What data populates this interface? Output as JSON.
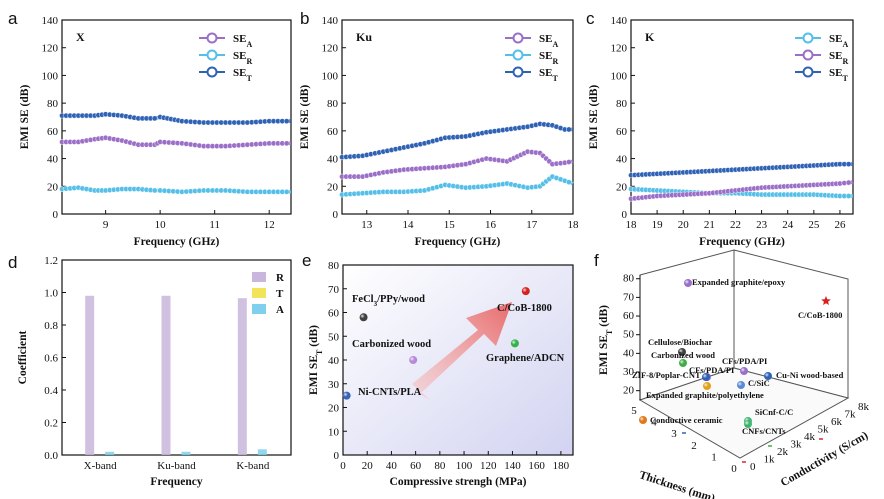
{
  "colors": {
    "se_a": "#9b6fc7",
    "se_r": "#55bfe8",
    "se_t": "#2f62b5",
    "bar_r": "#c9b6dc",
    "bar_t": "#f2e35a",
    "bar_a": "#7fd0ec",
    "highlight": "#d6201f"
  },
  "chart_data": [
    {
      "panel": "a",
      "type": "line",
      "band": "X",
      "xlabel": "Frequency (GHz)",
      "ylabel": "EMI SE (dB)",
      "xlim": [
        8.2,
        12.4
      ],
      "ylim": [
        0,
        140
      ],
      "xticks": [
        9,
        10,
        11,
        12
      ],
      "yticks": [
        0,
        20,
        40,
        60,
        80,
        100,
        120,
        140
      ],
      "x": [
        8.2,
        8.5,
        8.8,
        9.0,
        9.3,
        9.6,
        9.9,
        10.0,
        10.4,
        10.8,
        11.2,
        11.6,
        12.0,
        12.4
      ],
      "series": [
        {
          "name": "SE",
          "sub": "A",
          "color_key": "se_a",
          "values": [
            52,
            52,
            54,
            55,
            53,
            50,
            50,
            52,
            51,
            49,
            49,
            50,
            51,
            51
          ]
        },
        {
          "name": "SE",
          "sub": "R",
          "color_key": "se_r",
          "values": [
            18,
            19,
            17,
            17,
            18,
            18,
            17,
            17,
            16,
            17,
            17,
            16,
            16,
            16
          ]
        },
        {
          "name": "SE",
          "sub": "T",
          "color_key": "se_t",
          "values": [
            71,
            71,
            71,
            72,
            71,
            69,
            69,
            70,
            67,
            66,
            66,
            66,
            67,
            67
          ]
        }
      ]
    },
    {
      "panel": "b",
      "type": "line",
      "band": "Ku",
      "xlabel": "Frequency (GHz)",
      "ylabel": "EMI SE (dB)",
      "xlim": [
        12.4,
        18
      ],
      "ylim": [
        0,
        140
      ],
      "xticks": [
        13,
        14,
        15,
        16,
        17,
        18
      ],
      "yticks": [
        0,
        20,
        40,
        60,
        80,
        100,
        120,
        140
      ],
      "x": [
        12.4,
        12.9,
        13.4,
        13.9,
        14.4,
        14.9,
        15.4,
        15.9,
        16.4,
        16.9,
        17.2,
        17.5,
        17.8,
        18.0
      ],
      "series": [
        {
          "name": "SE",
          "sub": "A",
          "color_key": "se_a",
          "values": [
            27,
            27,
            30,
            32,
            33,
            34,
            36,
            40,
            38,
            45,
            44,
            36,
            37,
            38
          ]
        },
        {
          "name": "SE",
          "sub": "R",
          "color_key": "se_r",
          "values": [
            14,
            15,
            16,
            16,
            17,
            21,
            19,
            20,
            22,
            19,
            20,
            27,
            24,
            22
          ]
        },
        {
          "name": "SE",
          "sub": "T",
          "color_key": "se_t",
          "values": [
            41,
            42,
            45,
            48,
            51,
            55,
            56,
            59,
            61,
            63,
            65,
            64,
            61,
            61
          ]
        }
      ]
    },
    {
      "panel": "c",
      "type": "line",
      "band": "K",
      "xlabel": "Frequency (GHz)",
      "ylabel": "EMI SE (dB)",
      "xlim": [
        18,
        26.5
      ],
      "ylim": [
        0,
        140
      ],
      "xticks": [
        18,
        19,
        20,
        21,
        22,
        23,
        24,
        25,
        26
      ],
      "yticks": [
        0,
        20,
        40,
        60,
        80,
        100,
        120,
        140
      ],
      "x": [
        18,
        19,
        20,
        21,
        22,
        23,
        24,
        25,
        26,
        26.5
      ],
      "series": [
        {
          "name": "SE",
          "sub": "A",
          "color_key": "se_r",
          "values": [
            18,
            17,
            16,
            15,
            15,
            14,
            14,
            14,
            13,
            13
          ]
        },
        {
          "name": "SE",
          "sub": "R",
          "color_key": "se_a",
          "values": [
            11,
            13,
            14,
            15,
            17,
            19,
            20,
            21,
            22,
            23
          ]
        },
        {
          "name": "SE",
          "sub": "T",
          "color_key": "se_t",
          "values": [
            28,
            29,
            30,
            31,
            32,
            33,
            34,
            35,
            36,
            36
          ]
        }
      ]
    },
    {
      "panel": "d",
      "type": "bar",
      "xlabel": "Frequency",
      "ylabel": "Coefficient",
      "ylim": [
        0,
        1.2
      ],
      "yticks": [
        0.0,
        0.2,
        0.4,
        0.6,
        0.8,
        1.0,
        1.2
      ],
      "categories": [
        "X-band",
        "Ku-band",
        "K-band"
      ],
      "series": [
        {
          "name": "R",
          "color_key": "bar_r",
          "values": [
            0.98,
            0.98,
            0.965
          ]
        },
        {
          "name": "T",
          "color_key": "bar_t",
          "values": [
            0.0,
            0.0,
            0.0
          ]
        },
        {
          "name": "A",
          "color_key": "bar_a",
          "values": [
            0.02,
            0.02,
            0.035
          ]
        }
      ]
    },
    {
      "panel": "e",
      "type": "scatter",
      "xlabel": "Compressive strengh (MPa)",
      "ylabel": "EMI SE",
      "ylabel_sub": "T",
      "ylabel_unit": " (dB)",
      "xlim": [
        0,
        190
      ],
      "ylim": [
        0,
        80
      ],
      "xticks": [
        0,
        20,
        40,
        60,
        80,
        100,
        120,
        140,
        160,
        180
      ],
      "yticks": [
        0,
        10,
        20,
        30,
        40,
        50,
        60,
        70,
        80
      ],
      "points": [
        {
          "label": "FeCl3/PPy/wood",
          "x": 17,
          "y": 58,
          "color": "#404040"
        },
        {
          "label": "Carbonized wood",
          "x": 58,
          "y": 40,
          "color": "#b68ad8"
        },
        {
          "label": "Ni-CNTs/PLA",
          "x": 3,
          "y": 25,
          "color": "#3a62b5"
        },
        {
          "label": "Graphene/ADCN",
          "x": 142,
          "y": 47,
          "color": "#33b44a"
        },
        {
          "label": "C/CoB-1800",
          "x": 151,
          "y": 69,
          "color": "#d6201f"
        }
      ]
    },
    {
      "panel": "f",
      "type": "scatter",
      "xlabel": "Thickness (mm)",
      "ylabel": "EMI SE",
      "ylabel_sub": "T",
      "ylabel_unit": " (dB)",
      "zlabel": "Conductivity (S/cm)",
      "yticks": [
        20,
        30,
        40,
        50,
        60,
        70,
        80
      ],
      "thickness_ticks": [
        5,
        4,
        3,
        2,
        1,
        0
      ],
      "conductivity_ticks": [
        "0",
        "1k",
        "2k",
        "3k",
        "4k",
        "5k",
        "6k",
        "7k",
        "8k"
      ],
      "points": [
        {
          "label": "Expanded graphite/epoxy",
          "y": 80,
          "color": "#9a6fc9"
        },
        {
          "label": "C/CoB-1800",
          "y": 70,
          "color": "#d6201f"
        },
        {
          "label": "Cellulose/Biochar",
          "y": 60,
          "color": "#404040"
        },
        {
          "label": "Carbonized wood",
          "y": 54,
          "color": "#3fae49"
        },
        {
          "label": "CFs/PDA/PI",
          "y": 48,
          "color": "#9a6fc9"
        },
        {
          "label": "CFs/PDA/PI",
          "y": 45,
          "color": "#9a6fc9"
        },
        {
          "label": "Cu-Ni wood-based",
          "y": 47,
          "color": "#2f62b5"
        },
        {
          "label": "ZIF-8/Poplar-CNT",
          "y": 46,
          "color": "#2f62b5"
        },
        {
          "label": "C/SiC",
          "y": 43,
          "color": "#5a8bd6"
        },
        {
          "label": "Expanded graphite/polyethylene",
          "y": 42,
          "color": "#e0a21c"
        },
        {
          "label": "SiCnf-C/C",
          "y": 26,
          "color": "#44b678"
        },
        {
          "label": "CNFs/CNTs",
          "y": 23,
          "color": "#44b678"
        },
        {
          "label": "Conductive ceramic",
          "y": 24,
          "color": "#e07a18"
        }
      ]
    }
  ]
}
